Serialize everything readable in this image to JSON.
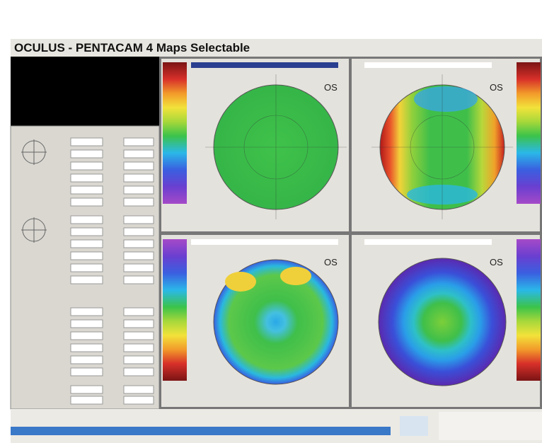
{
  "window": {
    "title": "OCULUS - PENTACAM 4 Maps Selectable"
  },
  "maps": [
    {
      "label": "OS"
    },
    {
      "label": "OS"
    },
    {
      "label": "OS"
    },
    {
      "label": "OS"
    }
  ]
}
